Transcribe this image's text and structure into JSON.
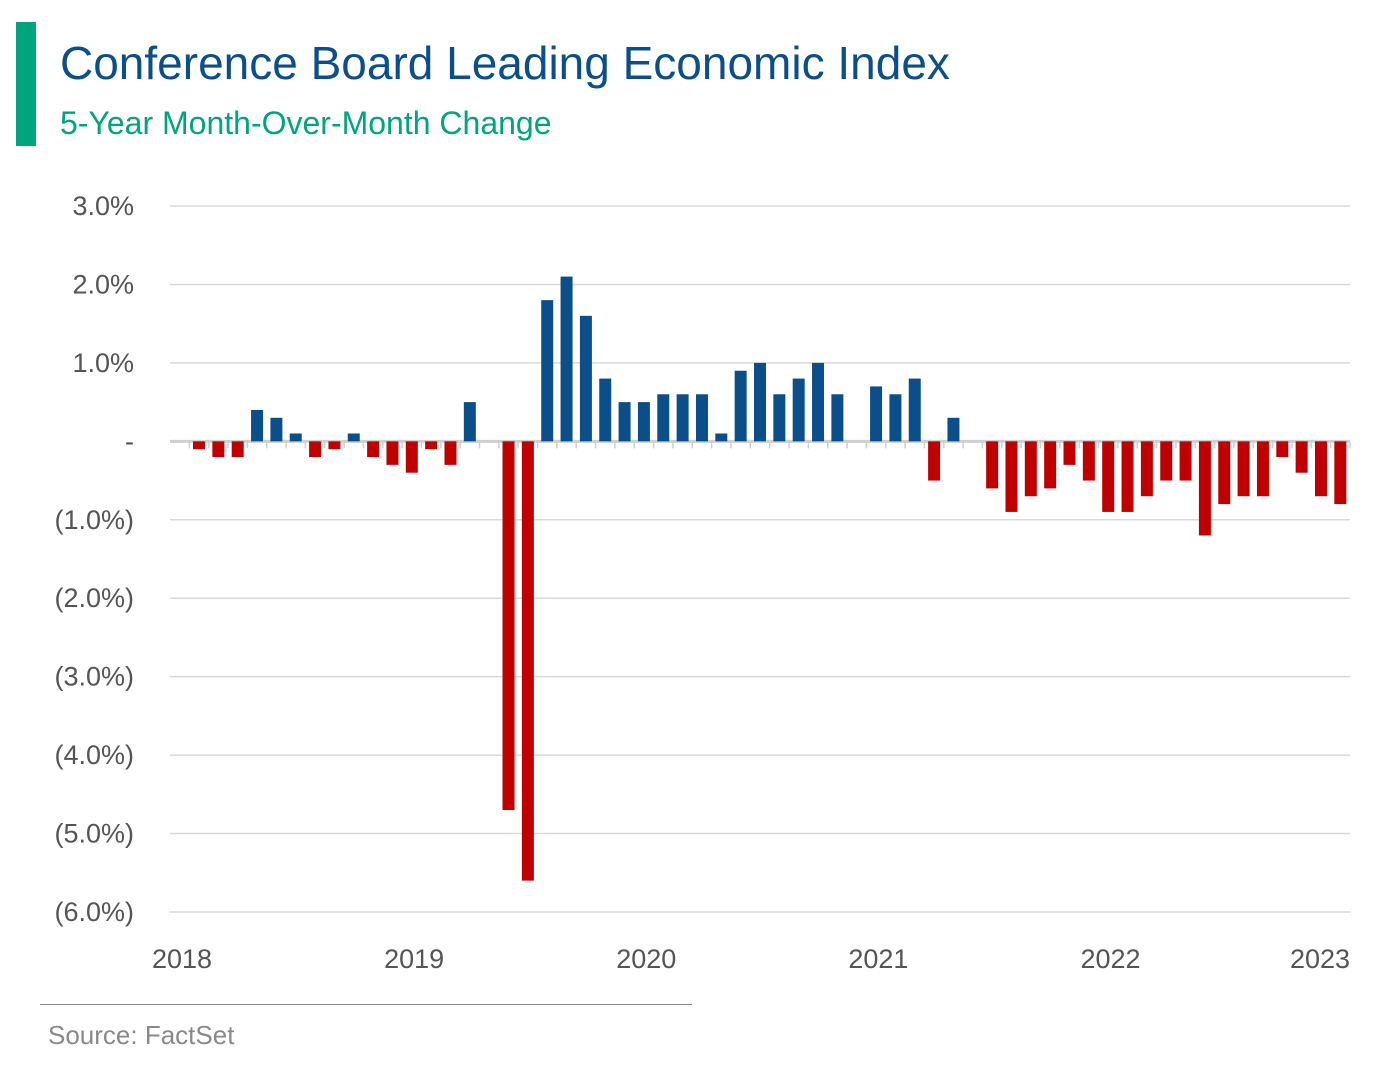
{
  "header": {
    "title": "Conference Board Leading Economic Index",
    "subtitle": "5-Year Month-Over-Month Change",
    "accent_color": "#00a57e",
    "title_color": "#0b4f8a"
  },
  "source": "Source: FactSet",
  "chart_data": {
    "type": "bar",
    "title": "Conference Board Leading Economic Index",
    "subtitle": "5-Year Month-Over-Month Change",
    "xlabel": "",
    "ylabel": "",
    "ylim": [
      -6.0,
      3.0
    ],
    "grid": true,
    "legend": "none",
    "y_ticks": [
      {
        "value": 3,
        "label": "3.0%"
      },
      {
        "value": 2,
        "label": "2.0%"
      },
      {
        "value": 1,
        "label": "1.0%"
      },
      {
        "value": 0,
        "label": "-"
      },
      {
        "value": -1,
        "label": "(1.0%)"
      },
      {
        "value": -2,
        "label": "(2.0%)"
      },
      {
        "value": -3,
        "label": "(3.0%)"
      },
      {
        "value": -4,
        "label": "(4.0%)"
      },
      {
        "value": -5,
        "label": "(5.0%)"
      },
      {
        "value": -6,
        "label": "(6.0%)"
      }
    ],
    "x_ticks": [
      "2018",
      "2019",
      "2020",
      "2021",
      "2022",
      "2023"
    ],
    "colors": {
      "positive": "#0b4f8a",
      "negative": "#c00000"
    },
    "series": [
      {
        "values": [
          0.0,
          -0.1,
          -0.2,
          -0.2,
          0.4,
          0.3,
          0.1,
          -0.2,
          -0.1,
          0.1,
          -0.2,
          -0.3,
          -0.4,
          -0.1,
          -0.3,
          0.5,
          0.0,
          -4.7,
          -5.6,
          1.8,
          2.1,
          1.6,
          0.8,
          0.5,
          0.5,
          0.6,
          0.6,
          0.6,
          0.1,
          0.9,
          1.0,
          0.6,
          0.8,
          1.0,
          0.6,
          0.0,
          0.7,
          0.6,
          0.8,
          -0.5,
          0.3,
          0.0,
          -0.6,
          -0.9,
          -0.7,
          -0.6,
          -0.3,
          -0.5,
          -0.9,
          -0.9,
          -0.7,
          -0.5,
          -0.5,
          -1.2,
          -0.8,
          -0.7,
          -0.7,
          -0.2,
          -0.4,
          -0.7,
          -0.8
        ]
      }
    ]
  }
}
